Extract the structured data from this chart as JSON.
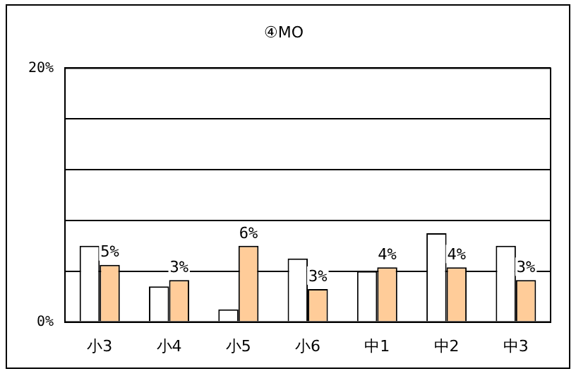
{
  "chart_data": {
    "type": "bar",
    "title": "④MO",
    "categories": [
      "小3",
      "小4",
      "小5",
      "小6",
      "中1",
      "中2",
      "中3"
    ],
    "series": [
      {
        "color": "#ffffff",
        "values": [
          6,
          2.8,
          1,
          5,
          4,
          7,
          6
        ]
      },
      {
        "color": "#ffcc99",
        "values": [
          4.5,
          3.3,
          6,
          2.6,
          4.3,
          4.3,
          3.3
        ],
        "value_labels": [
          "5%",
          "3%",
          "6%",
          "3%",
          "4%",
          "4%",
          "3%"
        ]
      }
    ],
    "ylim": [
      0,
      20
    ],
    "yticks": [
      {
        "value": 0,
        "label": "0%"
      },
      {
        "value": 4,
        "label": null
      },
      {
        "value": 8,
        "label": null
      },
      {
        "value": 12,
        "label": null
      },
      {
        "value": 16,
        "label": null
      },
      {
        "value": 20,
        "label": "20%"
      }
    ],
    "grid": "y",
    "legend": false
  }
}
